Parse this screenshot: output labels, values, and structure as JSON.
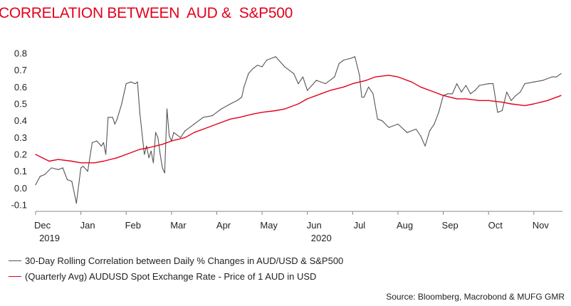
{
  "chart_data": {
    "type": "line",
    "title": "CORRELATION BETWEEN  AUD &  S&P500",
    "ylim": [
      -0.1,
      0.8
    ],
    "yticks": [
      "0.8",
      "0.7",
      "0.6",
      "0.5",
      "0.4",
      "0.3",
      "0.2",
      "0.1",
      "0.0",
      "-0.1"
    ],
    "ytick_values": [
      0.8,
      0.7,
      0.6,
      0.5,
      0.4,
      0.3,
      0.2,
      0.1,
      0.0,
      -0.1
    ],
    "xlim": [
      0,
      11.6
    ],
    "xticks": [
      {
        "label": "Dec",
        "sublabel": "2019",
        "x": 0.0
      },
      {
        "label": "Jan",
        "sublabel": "",
        "x": 1.0
      },
      {
        "label": "Feb",
        "sublabel": "",
        "x": 2.0
      },
      {
        "label": "Mar",
        "sublabel": "",
        "x": 3.0
      },
      {
        "label": "Apr",
        "sublabel": "",
        "x": 4.0
      },
      {
        "label": "May",
        "sublabel": "",
        "x": 5.0
      },
      {
        "label": "Jun",
        "sublabel": "2020",
        "x": 6.0
      },
      {
        "label": "Jul",
        "sublabel": "",
        "x": 7.0
      },
      {
        "label": "Aug",
        "sublabel": "",
        "x": 8.0
      },
      {
        "label": "Sep",
        "sublabel": "",
        "x": 9.0
      },
      {
        "label": "Oct",
        "sublabel": "",
        "x": 10.0
      },
      {
        "label": "Nov",
        "sublabel": "",
        "x": 11.0
      }
    ],
    "series": [
      {
        "name": "30-Day Rolling Correlation between Daily % Changes in AUD/USD & S&P500",
        "color": "#555555",
        "x": [
          0.0,
          0.1,
          0.2,
          0.35,
          0.5,
          0.6,
          0.7,
          0.8,
          0.9,
          1.0,
          1.05,
          1.15,
          1.25,
          1.35,
          1.45,
          1.5,
          1.55,
          1.6,
          1.7,
          1.75,
          1.8,
          1.9,
          2.0,
          2.1,
          2.2,
          2.25,
          2.3,
          2.4,
          2.45,
          2.5,
          2.55,
          2.6,
          2.65,
          2.7,
          2.75,
          2.8,
          2.85,
          2.9,
          2.95,
          3.0,
          3.05,
          3.1,
          3.2,
          3.3,
          3.5,
          3.7,
          3.9,
          4.1,
          4.3,
          4.45,
          4.55,
          4.6,
          4.7,
          4.8,
          4.9,
          5.0,
          5.1,
          5.3,
          5.5,
          5.7,
          5.8,
          5.9,
          6.0,
          6.2,
          6.4,
          6.6,
          6.7,
          6.8,
          6.95,
          7.05,
          7.15,
          7.2,
          7.25,
          7.35,
          7.45,
          7.55,
          7.65,
          7.8,
          8.0,
          8.2,
          8.4,
          8.5,
          8.6,
          8.7,
          8.8,
          8.9,
          9.0,
          9.1,
          9.2,
          9.3,
          9.4,
          9.5,
          9.6,
          9.7,
          9.8,
          10.0,
          10.1,
          10.2,
          10.3,
          10.4,
          10.5,
          10.6,
          10.7,
          10.8,
          11.0,
          11.2,
          11.4,
          11.5,
          11.6
        ],
        "y": [
          0.02,
          0.07,
          0.08,
          0.12,
          0.11,
          0.12,
          0.05,
          0.04,
          -0.09,
          0.12,
          0.13,
          0.1,
          0.27,
          0.28,
          0.25,
          0.27,
          0.2,
          0.42,
          0.42,
          0.38,
          0.41,
          0.5,
          0.62,
          0.63,
          0.62,
          0.63,
          0.45,
          0.2,
          0.25,
          0.18,
          0.22,
          0.15,
          0.33,
          0.3,
          0.2,
          0.12,
          0.09,
          0.47,
          0.31,
          0.28,
          0.33,
          0.32,
          0.3,
          0.34,
          0.38,
          0.42,
          0.43,
          0.47,
          0.5,
          0.52,
          0.54,
          0.6,
          0.68,
          0.71,
          0.73,
          0.72,
          0.76,
          0.78,
          0.72,
          0.68,
          0.62,
          0.66,
          0.58,
          0.64,
          0.62,
          0.66,
          0.74,
          0.76,
          0.77,
          0.78,
          0.67,
          0.54,
          0.54,
          0.6,
          0.56,
          0.41,
          0.4,
          0.36,
          0.38,
          0.33,
          0.35,
          0.31,
          0.25,
          0.34,
          0.38,
          0.45,
          0.55,
          0.56,
          0.56,
          0.62,
          0.57,
          0.61,
          0.56,
          0.58,
          0.61,
          0.62,
          0.62,
          0.45,
          0.46,
          0.57,
          0.52,
          0.55,
          0.57,
          0.62,
          0.63,
          0.64,
          0.66,
          0.66,
          0.68
        ]
      },
      {
        "name": "(Quarterly Avg) AUDUSD Spot Exchange Rate - Price of 1 AUD in USD",
        "color": "#e3001b",
        "x": [
          0.0,
          0.3,
          0.5,
          0.8,
          1.0,
          1.3,
          1.5,
          1.8,
          2.0,
          2.3,
          2.5,
          2.8,
          3.0,
          3.3,
          3.5,
          3.8,
          4.0,
          4.3,
          4.5,
          4.8,
          5.0,
          5.3,
          5.5,
          5.8,
          6.0,
          6.3,
          6.5,
          6.8,
          7.0,
          7.3,
          7.5,
          7.8,
          8.0,
          8.3,
          8.5,
          8.8,
          9.0,
          9.3,
          9.5,
          9.8,
          10.0,
          10.3,
          10.5,
          10.8,
          11.0,
          11.3,
          11.6
        ],
        "y": [
          0.2,
          0.16,
          0.17,
          0.16,
          0.15,
          0.15,
          0.16,
          0.18,
          0.2,
          0.23,
          0.24,
          0.26,
          0.28,
          0.3,
          0.33,
          0.36,
          0.38,
          0.41,
          0.42,
          0.44,
          0.45,
          0.46,
          0.47,
          0.5,
          0.53,
          0.56,
          0.58,
          0.6,
          0.62,
          0.64,
          0.66,
          0.67,
          0.66,
          0.63,
          0.6,
          0.57,
          0.55,
          0.53,
          0.53,
          0.52,
          0.52,
          0.51,
          0.5,
          0.49,
          0.5,
          0.52,
          0.55
        ]
      }
    ]
  },
  "legend": [
    {
      "label": "30-Day Rolling Correlation between Daily % Changes in AUD/USD & S&P500",
      "color": "#555555"
    },
    {
      "label": "(Quarterly Avg) AUDUSD Spot Exchange Rate - Price of 1 AUD in USD",
      "color": "#e3001b"
    }
  ],
  "source": "Source: Bloomberg, Macrobond & MUFG GMR"
}
